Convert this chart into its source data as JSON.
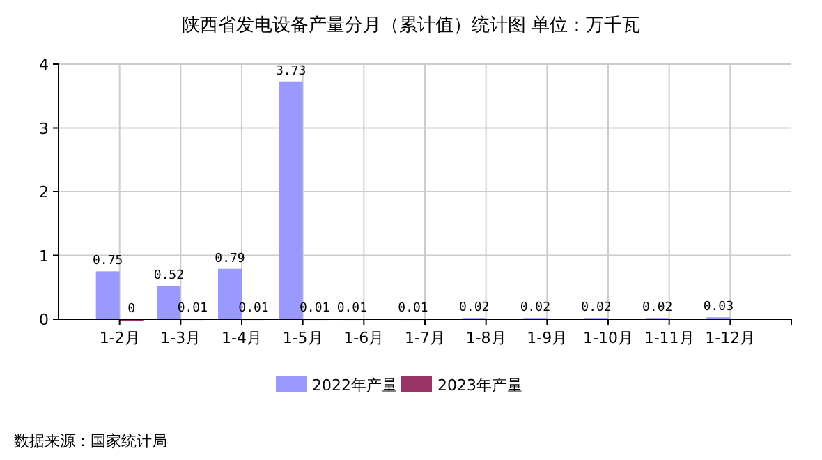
{
  "chart_data": {
    "type": "bar",
    "title": "陕西省发电设备产量分月（累计值）统计图 单位：万千瓦",
    "categories": [
      "1-2月",
      "1-3月",
      "1-4月",
      "1-5月",
      "1-6月",
      "1-7月",
      "1-8月",
      "1-9月",
      "1-10月",
      "1-11月",
      "1-12月"
    ],
    "series": [
      {
        "name": "2022年产量",
        "color": "#9999ff",
        "values": [
          0.75,
          0.52,
          0.79,
          3.73,
          0.01,
          0.01,
          0.02,
          0.02,
          0.02,
          0.02,
          0.03
        ]
      },
      {
        "name": "2023年产量",
        "color": "#993366",
        "values": [
          0,
          0.01,
          0.01,
          0.01,
          null,
          null,
          null,
          null,
          null,
          null,
          null
        ]
      }
    ],
    "ylim": [
      0,
      4
    ],
    "yticks": [
      0,
      1,
      2,
      3,
      4
    ],
    "grid": true,
    "legend": "bottom",
    "data_labels": true,
    "annotations": [
      "数据来源：国家统计局"
    ]
  }
}
